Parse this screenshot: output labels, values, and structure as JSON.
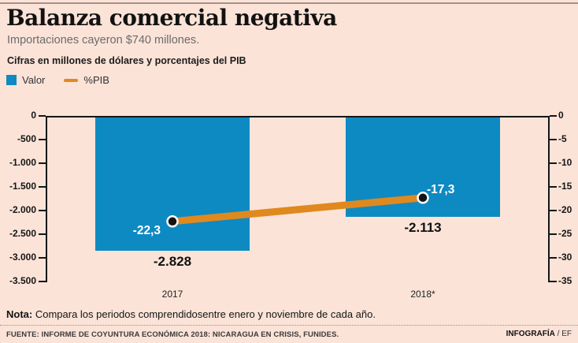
{
  "header": {
    "title": "Balanza comercial negativa",
    "subtitle": "Importaciones cayeron $740 millones.",
    "kicker": "Cifras en millones de dólares y porcentajes del PIB"
  },
  "legend": [
    {
      "label": "Valor",
      "swatch": "square",
      "color": "#0e8ac2"
    },
    {
      "label": "%PIB",
      "swatch": "line",
      "color": "#e0891f"
    }
  ],
  "chart_data": {
    "type": "bar",
    "categories": [
      "2017",
      "2018*"
    ],
    "series": [
      {
        "name": "Valor",
        "type": "bar",
        "color": "#0e8ac2",
        "values": [
          -2828,
          -2113
        ],
        "labels": [
          "-2.828",
          "-2.113"
        ]
      },
      {
        "name": "%PIB",
        "type": "line",
        "color": "#e0891f",
        "point_color": "#141414",
        "values": [
          -22.3,
          -17.3
        ],
        "labels": [
          "-22,3",
          "-17,3"
        ]
      }
    ],
    "left_axis": {
      "min": -3500,
      "max": 0,
      "ticks": [
        "0",
        "-500",
        "-1.000",
        "-1.500",
        "-2.000",
        "-2.500",
        "-3.000",
        "-3.500"
      ]
    },
    "right_axis": {
      "min": -35,
      "max": 0,
      "ticks": [
        "0",
        "-5",
        "-10",
        "-15",
        "-20",
        "-25",
        "-30",
        "-35"
      ]
    },
    "grid": false,
    "legend_position": "top-left"
  },
  "footer": {
    "note_label": "Nota:",
    "note_text": " Compara los periodos comprendidosentre enero y noviembre de cada año.",
    "source": "FUENTE: INFORME DE COYUNTURA ECONÓMICA 2018: NICARAGUA EN CRISIS, FUNIDES.",
    "credit_bold": "INFOGRAFÍA",
    "credit_rest": " / EF"
  }
}
